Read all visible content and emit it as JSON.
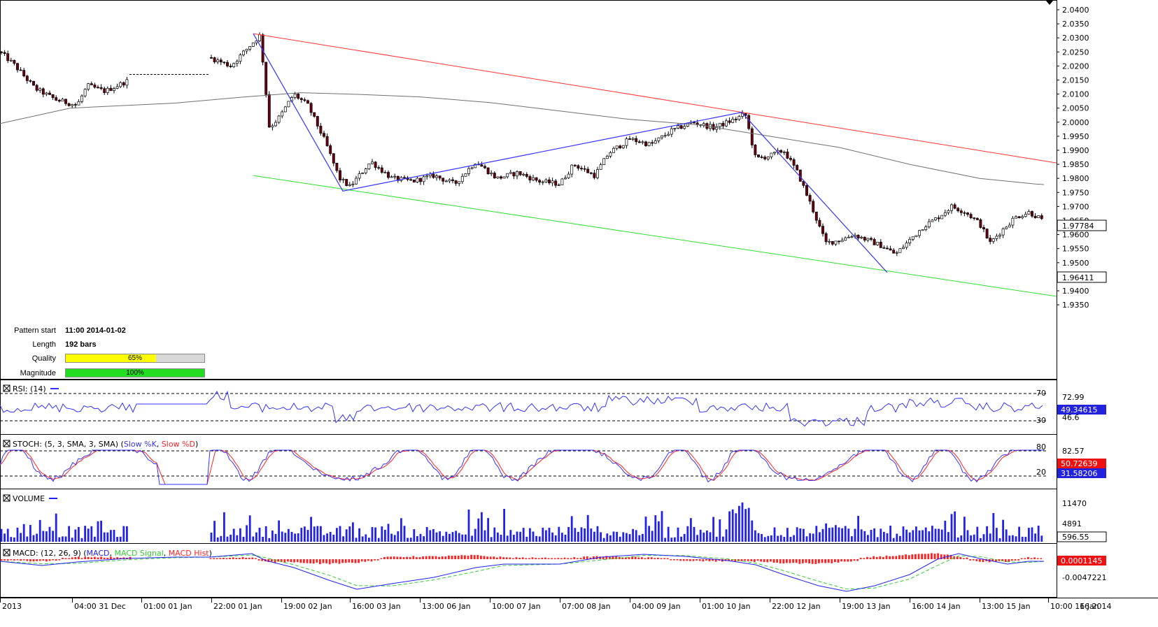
{
  "price_axis": {
    "ticks": [
      "2.0400",
      "2.0350",
      "2.0300",
      "2.0250",
      "2.0200",
      "2.0150",
      "2.0100",
      "2.0050",
      "2.0000",
      "1.9950",
      "1.9900",
      "1.9850",
      "1.9800",
      "1.9750",
      "1.9700",
      "1.9650",
      "1.9600",
      "1.9550",
      "1.9500",
      "1.9450",
      "1.9400",
      "1.9350"
    ],
    "ma_label": "1.97784",
    "last_label": "1.96411"
  },
  "time_axis": {
    "ticks": [
      "2013",
      "04:00 31 Dec",
      "01:00 01 Jan",
      "22:00 01 Jan",
      "19:00 02 Jan",
      "16:00 03 Jan",
      "13:00 06 Jan",
      "10:00 07 Jan",
      "07:00 08 Jan",
      "04:00 09 Jan",
      "01:00 10 Jan",
      "22:00 12 Jan",
      "19:00 13 Jan",
      "16:00 14 Jan",
      "13:00 15 Jan",
      "10:00 16 Jan",
      "16 2014"
    ]
  },
  "pattern_info": {
    "start_label": "Pattern start",
    "start_value": "11:00 2014-01-02",
    "length_label": "Length",
    "length_value": "192 bars",
    "quality_label": "Quality",
    "quality_value": "65%",
    "quality_fraction": 0.65,
    "magnitude_label": "Magnitude",
    "magnitude_value": "100%",
    "magnitude_fraction": 1.0
  },
  "panels": {
    "rsi": {
      "title": "RSI: (14)",
      "level_high": "70",
      "level_low": "30",
      "axis_label": "72.99",
      "axis_label2": "46.6",
      "value_label": "49.34615"
    },
    "stoch": {
      "title": "STOCH: (5, 3, SMA, 3, SMA)",
      "legend_open": "(",
      "legend_k": "Slow %K",
      "legend_sep": ", ",
      "legend_d": "Slow %D",
      "legend_close": ")",
      "level_high": "80",
      "level_low": "20",
      "axis_label": "82.57",
      "value_k": "50.72639",
      "value_d": "31.58206"
    },
    "volume": {
      "title": "VOLUME",
      "axis_high": "11470",
      "axis_mid": "4891",
      "value_label": "596.55"
    },
    "macd": {
      "title": "MACD: (12, 26, 9)",
      "legend_open": "(",
      "legend_macd": "MACD",
      "legend_sep1": ", ",
      "legend_signal": "MACD Signal",
      "legend_sep2": ", ",
      "legend_hist": "MACD Hist",
      "legend_close": ")",
      "value_label": "0.0001145",
      "axis_low": "-0.0047221"
    }
  },
  "colors": {
    "up_candle": "#ffffff",
    "down_candle": "#6b0010",
    "resistance": "#ff3333",
    "support": "#33dd33",
    "zigzag": "#3333ff",
    "moving_average": "#707070",
    "rsi": "#3333ff",
    "stoch_k": "#3333ff",
    "stoch_d": "#ff2222",
    "volume": "#2222ee",
    "macd": "#2222ee",
    "macd_signal": "#33cc33",
    "macd_hist": "#ff2222",
    "quality": "#ffff00",
    "magnitude": "#22dd22",
    "value_box": "#2222dd",
    "value_box_red": "#ee1111"
  }
}
